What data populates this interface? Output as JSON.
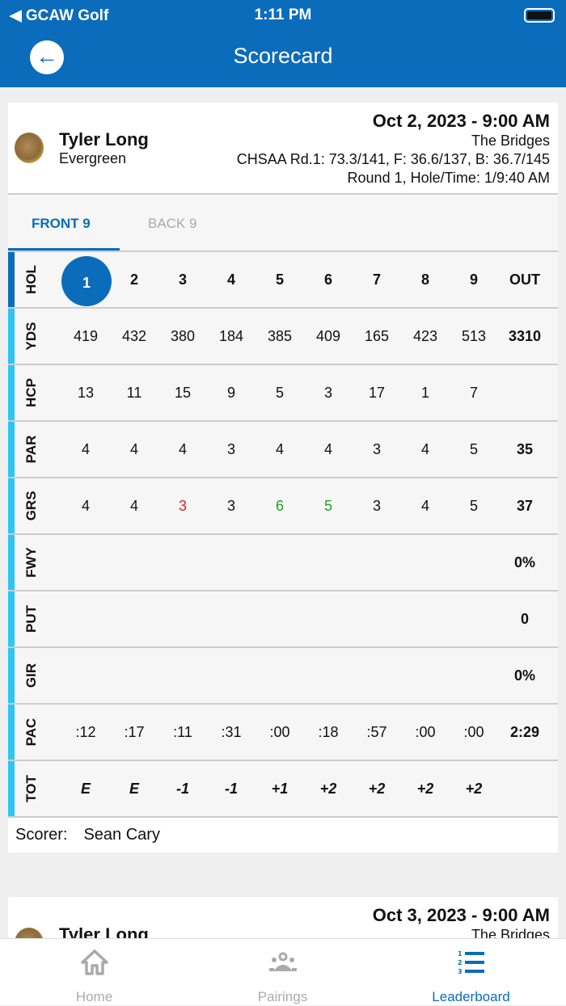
{
  "status": {
    "carrier": "◀ GCAW Golf",
    "time": "1:11 PM"
  },
  "header": {
    "title": "Scorecard"
  },
  "round": {
    "player": "Tyler Long",
    "team": "Evergreen",
    "date": "Oct 2, 2023 - 9:00 AM",
    "course": "The Bridges",
    "rating": "CHSAA Rd.1: 73.3/141, F: 36.6/137, B: 36.7/145",
    "round_info": "Round 1, Hole/Time: 1/9:40 AM"
  },
  "tabs": {
    "front": "FRONT 9",
    "back": "BACK 9",
    "active": "front"
  },
  "colors": {
    "accent": "#0b6cbc",
    "under_par": "#e02020",
    "over_par": "#1aa51a",
    "row_marker": "#2dc6f4"
  },
  "rows": [
    {
      "label": "HOL",
      "cells": [
        "1",
        "2",
        "3",
        "4",
        "5",
        "6",
        "7",
        "8",
        "9"
      ],
      "out": "OUT",
      "selected": 0
    },
    {
      "label": "YDS",
      "cells": [
        "419",
        "432",
        "380",
        "184",
        "385",
        "409",
        "165",
        "423",
        "513"
      ],
      "out": "3310"
    },
    {
      "label": "HCP",
      "cells": [
        "13",
        "11",
        "15",
        "9",
        "5",
        "3",
        "17",
        "1",
        "7"
      ],
      "out": ""
    },
    {
      "label": "PAR",
      "cells": [
        "4",
        "4",
        "4",
        "3",
        "4",
        "4",
        "3",
        "4",
        "5"
      ],
      "out": "35"
    },
    {
      "label": "GRS",
      "cells": [
        "4",
        "4",
        "3",
        "3",
        "6",
        "5",
        "3",
        "4",
        "5"
      ],
      "out": "37",
      "colors": [
        "",
        "",
        "under_par",
        "",
        "over_par",
        "over_par",
        "",
        "",
        ""
      ]
    },
    {
      "label": "FWY",
      "cells": [
        "",
        "",
        "",
        "",
        "",
        "",
        "",
        "",
        ""
      ],
      "out": "0%"
    },
    {
      "label": "PUT",
      "cells": [
        "",
        "",
        "",
        "",
        "",
        "",
        "",
        "",
        ""
      ],
      "out": "0"
    },
    {
      "label": "GIR",
      "cells": [
        "",
        "",
        "",
        "",
        "",
        "",
        "",
        "",
        ""
      ],
      "out": "0%"
    },
    {
      "label": "PAC",
      "cells": [
        ":12",
        ":17",
        ":11",
        ":31",
        ":00",
        ":18",
        ":57",
        ":00",
        ":00"
      ],
      "out": "2:29"
    },
    {
      "label": "TOT",
      "cells": [
        "E",
        "E",
        "-1",
        "-1",
        "+1",
        "+2",
        "+2",
        "+2",
        "+2"
      ],
      "out": ""
    }
  ],
  "scorer": {
    "label": "Scorer:",
    "name": "Sean Cary"
  },
  "next_round": {
    "player": "Tyler Long",
    "date": "Oct 3, 2023 - 9:00 AM",
    "course": "The Bridges"
  },
  "nav": [
    {
      "label": "Home",
      "icon": "home-icon"
    },
    {
      "label": "Pairings",
      "icon": "group-icon"
    },
    {
      "label": "Leaderboard",
      "icon": "leaderboard-icon",
      "active": true
    }
  ]
}
